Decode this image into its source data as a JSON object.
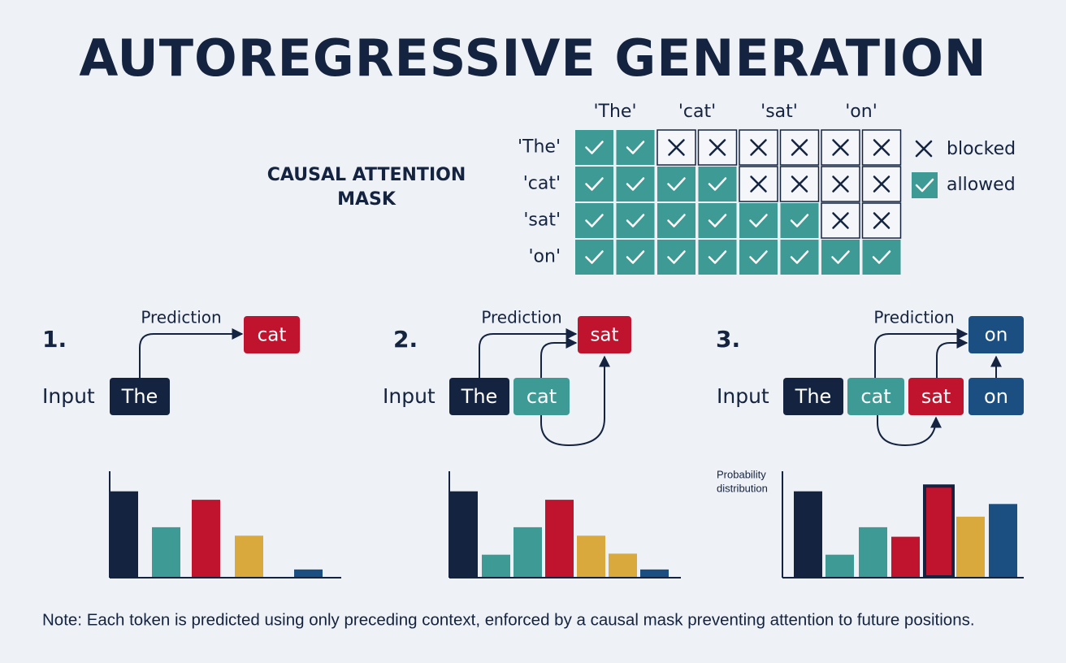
{
  "title": "AUTOREGRESSIVE GENERATION",
  "mask": {
    "title_lines": [
      "CAUSAL ATTENTION",
      "MASK"
    ],
    "columns": [
      "'The'",
      "'cat'",
      "'sat'",
      "'on'"
    ],
    "rows": [
      "'The'",
      "'cat'",
      "'sat'",
      "'on'"
    ],
    "legend": {
      "blocked": "blocked",
      "allowed": "allowed"
    },
    "allowed_color": "#3d9a94"
  },
  "steps": [
    {
      "number": "1.",
      "input_label": "Input",
      "prediction_label": "Prediction",
      "inputs": [
        {
          "text": "The",
          "color": "#14233f"
        }
      ],
      "prediction": {
        "text": "cat",
        "color": "#c0132e"
      },
      "distribution": {
        "ylim": [
          0,
          100
        ],
        "values": [
          81,
          47,
          73,
          39,
          7
        ],
        "colors": [
          "#14233f",
          "#3d9a94",
          "#c0132e",
          "#d9a93e",
          "#1b4f82"
        ]
      }
    },
    {
      "number": "2.",
      "input_label": "Input",
      "prediction_label": "Prediction",
      "inputs": [
        {
          "text": "The",
          "color": "#14233f"
        },
        {
          "text": "cat",
          "color": "#3d9a94"
        }
      ],
      "prediction": {
        "text": "sat",
        "color": "#c0132e"
      },
      "distribution": {
        "ylim": [
          0,
          100
        ],
        "values": [
          81,
          21,
          47,
          73,
          39,
          22,
          7
        ],
        "colors": [
          "#14233f",
          "#3d9a94",
          "#3d9a94",
          "#c0132e",
          "#d9a93e",
          "#d9a93e",
          "#1b4f82"
        ]
      }
    },
    {
      "number": "3.",
      "input_label": "Input",
      "prediction_label": "Prediction",
      "inputs": [
        {
          "text": "The",
          "color": "#14233f"
        },
        {
          "text": "cat",
          "color": "#3d9a94"
        },
        {
          "text": "sat",
          "color": "#c0132e"
        },
        {
          "text": "on",
          "color": "#1b4f82"
        }
      ],
      "prediction": {
        "text": "on",
        "color": "#1b4f82"
      },
      "distribution_label": [
        "Probability",
        "distribution"
      ],
      "distribution": {
        "ylim": [
          0,
          100
        ],
        "values": [
          81,
          21,
          47,
          38,
          86,
          57,
          69
        ],
        "colors": [
          "#14233f",
          "#3d9a94",
          "#3d9a94",
          "#c0132e",
          "#c0132e",
          "#d9a93e",
          "#1b4f82"
        ],
        "highlight_index": 4,
        "highlight_color": "#14233f"
      }
    }
  ],
  "note": "Note: Each token is predicted using only preceding context, enforced by a causal mask preventing attention to future positions."
}
